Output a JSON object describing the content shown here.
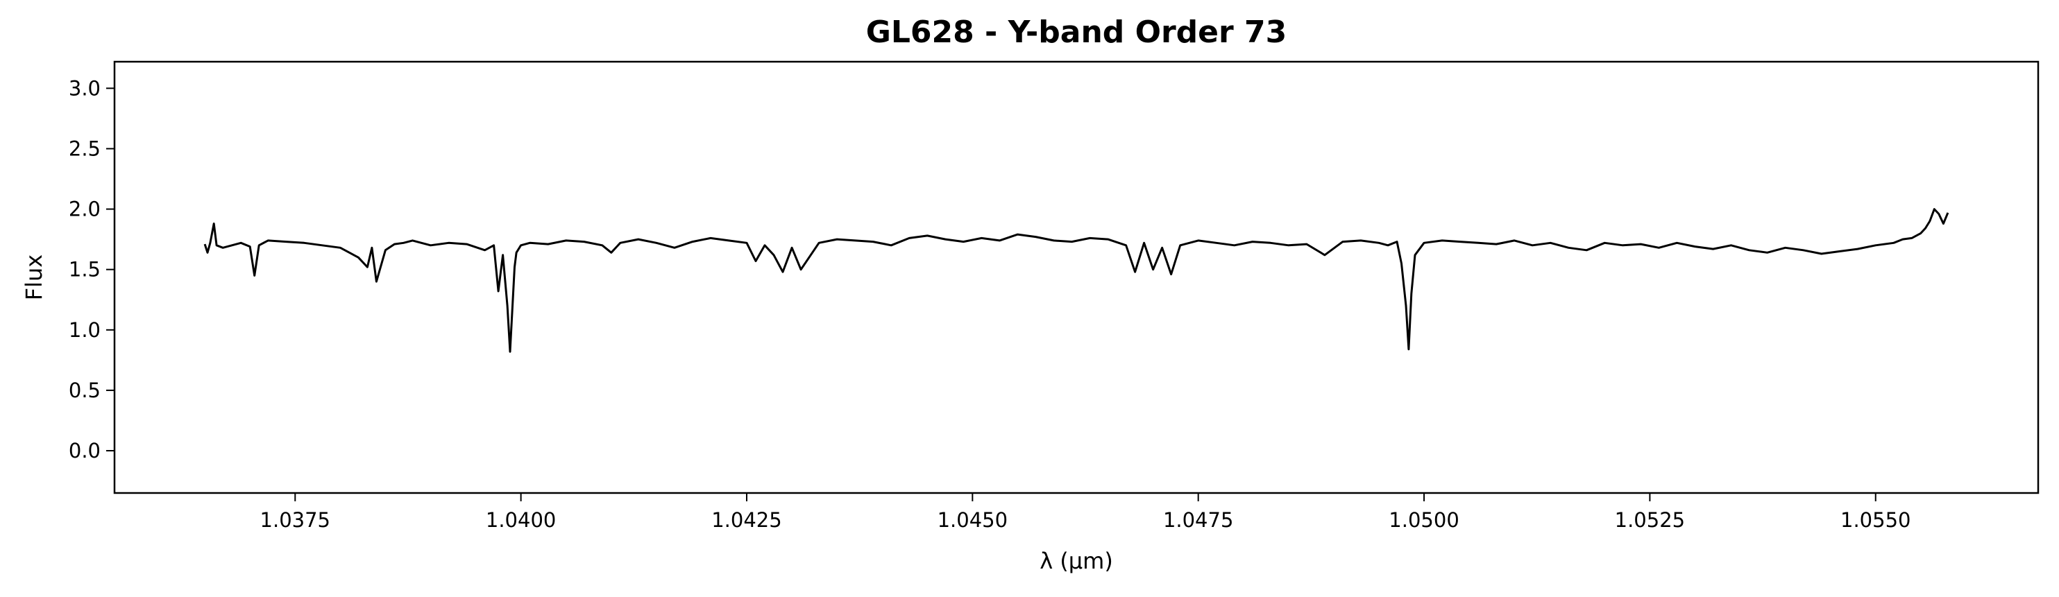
{
  "chart_data": {
    "type": "line",
    "title": "GL628 - Y-band Order 73",
    "xlabel": "λ (μm)",
    "ylabel": "Flux",
    "xlim": [
      1.0355,
      1.0568
    ],
    "ylim": [
      -0.35,
      3.22
    ],
    "xticks": [
      1.0375,
      1.04,
      1.0425,
      1.045,
      1.0475,
      1.05,
      1.0525,
      1.055
    ],
    "xtick_labels": [
      "1.0375",
      "1.0400",
      "1.0425",
      "1.0450",
      "1.0475",
      "1.0500",
      "1.0525",
      "1.0550"
    ],
    "yticks": [
      0.0,
      0.5,
      1.0,
      1.5,
      2.0,
      2.5,
      3.0
    ],
    "ytick_labels": [
      "0.0",
      "0.5",
      "1.0",
      "1.5",
      "2.0",
      "2.5",
      "3.0"
    ],
    "grid": false,
    "line_color": "#000000",
    "series": [
      {
        "x": [
          1.0365,
          1.03653,
          1.03656,
          1.0366,
          1.03663,
          1.0367,
          1.0368,
          1.0369,
          1.037,
          1.03705,
          1.0371,
          1.0372,
          1.0374,
          1.0376,
          1.0378,
          1.038,
          1.0382,
          1.0383,
          1.03835,
          1.0384,
          1.0385,
          1.0386,
          1.0387,
          1.0388,
          1.039,
          1.0392,
          1.0394,
          1.0396,
          1.0397,
          1.03975,
          1.0398,
          1.03985,
          1.03988,
          1.0399,
          1.03993,
          1.03995,
          1.04,
          1.0401,
          1.0403,
          1.0405,
          1.0407,
          1.0409,
          1.041,
          1.0411,
          1.0413,
          1.0415,
          1.0417,
          1.0419,
          1.0421,
          1.0423,
          1.0425,
          1.0426,
          1.0427,
          1.0428,
          1.0429,
          1.043,
          1.0431,
          1.0433,
          1.0435,
          1.0437,
          1.0439,
          1.0441,
          1.0443,
          1.0445,
          1.0447,
          1.0449,
          1.0451,
          1.0453,
          1.0455,
          1.0457,
          1.0459,
          1.0461,
          1.0463,
          1.0465,
          1.0467,
          1.0468,
          1.0469,
          1.047,
          1.0471,
          1.0472,
          1.0473,
          1.0475,
          1.0477,
          1.0479,
          1.0481,
          1.0483,
          1.0485,
          1.0487,
          1.0489,
          1.0491,
          1.0493,
          1.0495,
          1.0496,
          1.0497,
          1.04975,
          1.0498,
          1.04983,
          1.04986,
          1.0499,
          1.05,
          1.0502,
          1.0504,
          1.0506,
          1.0508,
          1.051,
          1.0512,
          1.0514,
          1.0516,
          1.0518,
          1.052,
          1.0522,
          1.0524,
          1.0526,
          1.0528,
          1.053,
          1.0532,
          1.0534,
          1.0536,
          1.0538,
          1.054,
          1.0542,
          1.0544,
          1.0546,
          1.0548,
          1.055,
          1.0552,
          1.0553,
          1.0554,
          1.0555,
          1.05555,
          1.0556,
          1.05565,
          1.0557,
          1.05575,
          1.0558
        ],
        "y": [
          1.71,
          1.64,
          1.72,
          1.88,
          1.7,
          1.68,
          1.7,
          1.72,
          1.69,
          1.45,
          1.7,
          1.74,
          1.73,
          1.72,
          1.7,
          1.68,
          1.6,
          1.52,
          1.68,
          1.4,
          1.66,
          1.71,
          1.72,
          1.74,
          1.7,
          1.72,
          1.71,
          1.66,
          1.7,
          1.32,
          1.62,
          1.2,
          0.82,
          1.1,
          1.52,
          1.64,
          1.7,
          1.72,
          1.71,
          1.74,
          1.73,
          1.7,
          1.64,
          1.72,
          1.75,
          1.72,
          1.68,
          1.73,
          1.76,
          1.74,
          1.72,
          1.57,
          1.7,
          1.62,
          1.48,
          1.68,
          1.5,
          1.72,
          1.75,
          1.74,
          1.73,
          1.7,
          1.76,
          1.78,
          1.75,
          1.73,
          1.76,
          1.74,
          1.79,
          1.77,
          1.74,
          1.73,
          1.76,
          1.75,
          1.7,
          1.48,
          1.72,
          1.5,
          1.68,
          1.46,
          1.7,
          1.74,
          1.72,
          1.7,
          1.73,
          1.72,
          1.7,
          1.71,
          1.62,
          1.73,
          1.74,
          1.72,
          1.7,
          1.73,
          1.55,
          1.2,
          0.84,
          1.3,
          1.62,
          1.72,
          1.74,
          1.73,
          1.72,
          1.71,
          1.74,
          1.7,
          1.72,
          1.68,
          1.66,
          1.72,
          1.7,
          1.71,
          1.68,
          1.72,
          1.69,
          1.67,
          1.7,
          1.66,
          1.64,
          1.68,
          1.66,
          1.63,
          1.65,
          1.67,
          1.7,
          1.72,
          1.75,
          1.76,
          1.8,
          1.84,
          1.9,
          2.0,
          1.96,
          1.88,
          1.97
        ]
      }
    ]
  }
}
